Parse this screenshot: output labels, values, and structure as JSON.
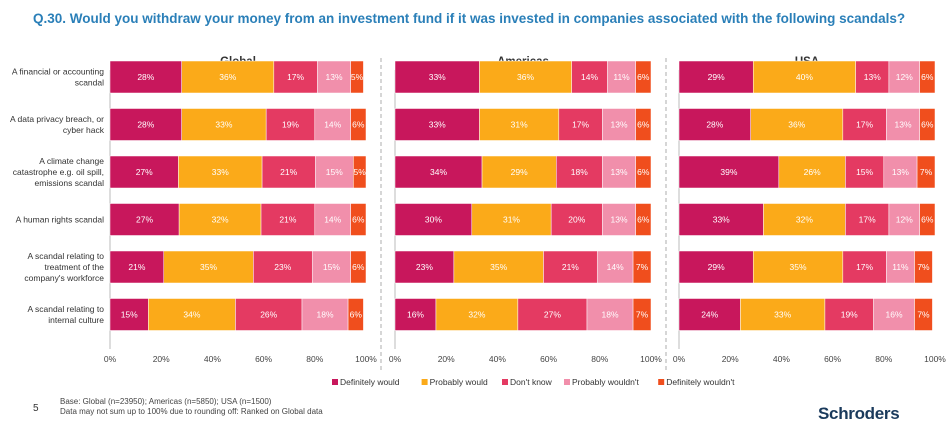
{
  "title": "Q.30. Would you withdraw your money from an investment fund if it was invested in companies associated with the following scandals?",
  "slide_number": "5",
  "footnote": {
    "line1": "Base: Global (n=23950); Americas (n=5850); USA (n=1500)",
    "line2": "Data may not sum up to 100% due to rounding off: Ranked on Global data"
  },
  "brand": "Schroders",
  "colors": {
    "definitely_would": "#c8175c",
    "probably_would": "#fbaa19",
    "dont_know": "#e43a62",
    "probably_wouldnt": "#f18fab",
    "definitely_wouldnt": "#f04e1d"
  },
  "chart_data": {
    "type": "bar",
    "orientation": "horizontal-stacked-100",
    "categories": [
      [
        "A financial or accounting",
        "scandal"
      ],
      [
        "A data privacy breach, or",
        "cyber hack"
      ],
      [
        "A climate change",
        "catastrophe e.g. oil spill,",
        "emissions scandal"
      ],
      [
        "A human rights scandal"
      ],
      [
        "A scandal relating to",
        "treatment of the",
        "company's workforce"
      ],
      [
        "A scandal relating to",
        "internal culture"
      ]
    ],
    "series_names": [
      "Definitely would",
      "Probably would",
      "Don't know",
      "Probably wouldn't",
      "Definitely wouldn't"
    ],
    "x_ticks": [
      "0%",
      "20%",
      "40%",
      "60%",
      "80%",
      "100%"
    ],
    "xlim": [
      0,
      100
    ],
    "legend_position": "bottom",
    "panels": [
      {
        "name": "Global",
        "values": [
          [
            28,
            36,
            17,
            13,
            5
          ],
          [
            28,
            33,
            19,
            14,
            6
          ],
          [
            27,
            33,
            21,
            15,
            5
          ],
          [
            27,
            32,
            21,
            14,
            6
          ],
          [
            21,
            35,
            23,
            15,
            6
          ],
          [
            15,
            34,
            26,
            18,
            6
          ]
        ]
      },
      {
        "name": "Americas",
        "values": [
          [
            33,
            36,
            14,
            11,
            6
          ],
          [
            33,
            31,
            17,
            13,
            6
          ],
          [
            34,
            29,
            18,
            13,
            6
          ],
          [
            30,
            31,
            20,
            13,
            6
          ],
          [
            23,
            35,
            21,
            14,
            7
          ],
          [
            16,
            32,
            27,
            18,
            7
          ]
        ]
      },
      {
        "name": "USA",
        "values": [
          [
            29,
            40,
            13,
            12,
            6
          ],
          [
            28,
            36,
            17,
            13,
            6
          ],
          [
            39,
            26,
            15,
            13,
            7
          ],
          [
            33,
            32,
            17,
            12,
            6
          ],
          [
            29,
            35,
            17,
            11,
            7
          ],
          [
            24,
            33,
            19,
            16,
            7
          ]
        ]
      }
    ]
  }
}
